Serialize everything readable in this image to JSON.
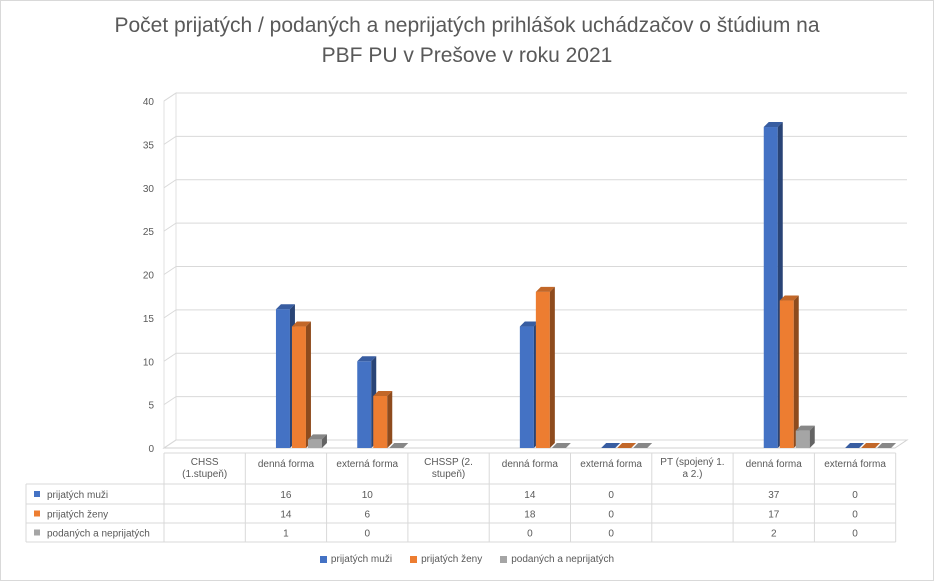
{
  "title_line1": "Počet prijatých / podaných a neprijatých prihlášok uchádzačov o štúdium na",
  "title_line2": "PBF PU v Prešove v roku 2021",
  "chart_data": {
    "type": "bar",
    "title": "Počet prijatých / podaných a neprijatých prihlášok uchádzačov o štúdium na PBF PU v Prešove v roku 2021",
    "categories": [
      "CHSS (1.stupeň)",
      "denná forma",
      "externá forma",
      "CHSSP (2. stupeň)",
      "denná forma",
      "externá forma",
      "PT (spojený 1. a 2.)",
      "denná forma",
      "externá forma"
    ],
    "category_lines": [
      [
        "CHSS",
        "(1.stupeň)"
      ],
      [
        "denná forma"
      ],
      [
        "externá forma"
      ],
      [
        "CHSSP (2.",
        "stupeň)"
      ],
      [
        "denná forma"
      ],
      [
        "externá forma"
      ],
      [
        "PT (spojený 1.",
        "a 2.)"
      ],
      [
        "denná forma"
      ],
      [
        "externá forma"
      ]
    ],
    "series": [
      {
        "name": "prijatých muži",
        "color": "#4472C4",
        "values": [
          null,
          16,
          10,
          null,
          14,
          0,
          null,
          37,
          0
        ]
      },
      {
        "name": "prijatých ženy",
        "color": "#ED7D31",
        "values": [
          null,
          14,
          6,
          null,
          18,
          0,
          null,
          17,
          0
        ]
      },
      {
        "name": "podaných a neprijatých",
        "color": "#A5A5A5",
        "values": [
          null,
          1,
          0,
          null,
          0,
          0,
          null,
          2,
          0
        ]
      }
    ],
    "ylim": [
      0,
      40
    ],
    "yticks": [
      0,
      5,
      10,
      15,
      20,
      25,
      30,
      35,
      40
    ],
    "grid": true,
    "data_table": true,
    "legend_position": "bottom"
  }
}
